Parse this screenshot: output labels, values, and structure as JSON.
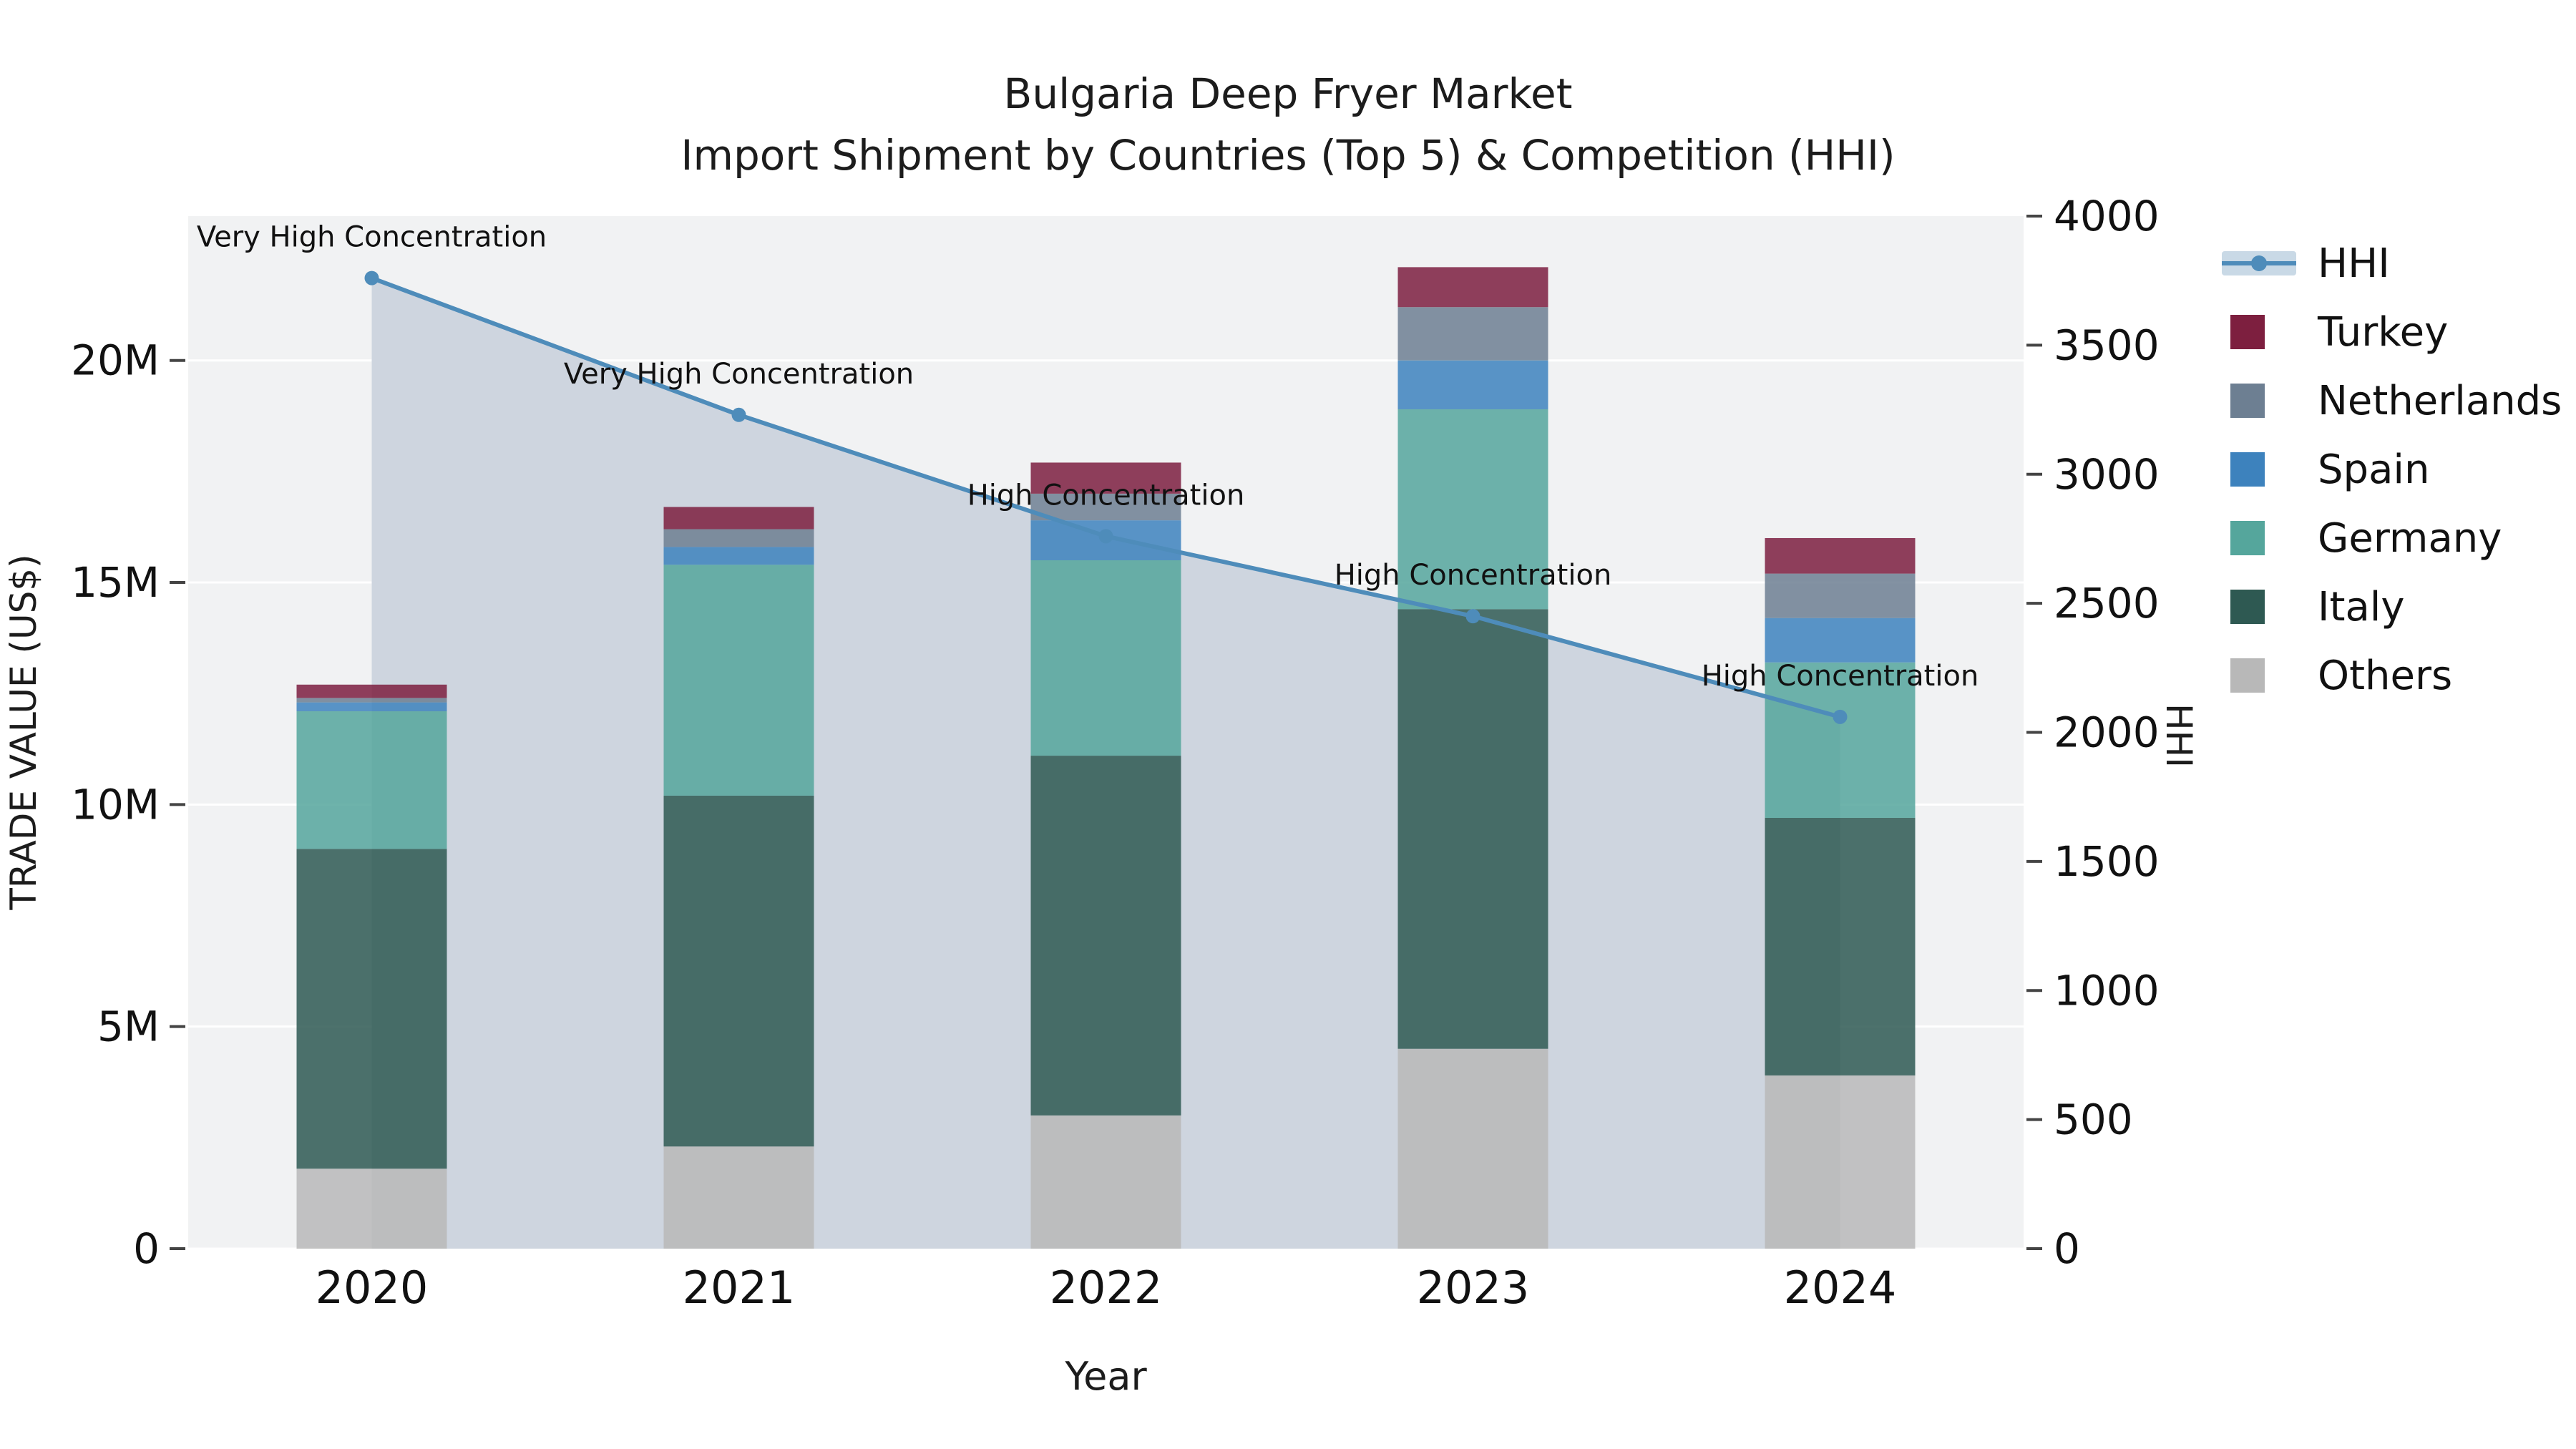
{
  "title": {
    "line1": "Bulgaria Deep Fryer Market",
    "line2": "Import Shipment by Countries (Top 5) & Competition (HHI)"
  },
  "axes": {
    "y_left_title": "TRADE VALUE (US$)",
    "x_title": "Year",
    "y_right_title": "HHI"
  },
  "legend": [
    {
      "label": "HHI",
      "type": "line",
      "color": "#4e8cba"
    },
    {
      "label": "Turkey",
      "type": "square",
      "color": "#7d1f3f"
    },
    {
      "label": "Netherlands",
      "type": "square",
      "color": "#6d7f92"
    },
    {
      "label": "Spain",
      "type": "square",
      "color": "#3d82bd"
    },
    {
      "label": "Germany",
      "type": "square",
      "color": "#55a69c"
    },
    {
      "label": "Italy",
      "type": "square",
      "color": "#2e5952"
    },
    {
      "label": "Others",
      "type": "square",
      "color": "#b8b8b8"
    }
  ],
  "chart_data": {
    "type": "bar",
    "subtype": "stacked-bars-with-line",
    "title": "Bulgaria Deep Fryer Market Import Shipment by Countries (Top 5) & Competition (HHI)",
    "xlabel": "Year",
    "ylabel_left": "TRADE VALUE (US$)",
    "ylabel_right": "HHI",
    "categories": [
      "2020",
      "2021",
      "2022",
      "2023",
      "2024"
    ],
    "bar_value_unit": "million US$",
    "series": [
      {
        "name": "Others",
        "color": "#b8b8b8",
        "values": [
          1.8,
          2.3,
          3.0,
          4.5,
          3.9
        ]
      },
      {
        "name": "Italy",
        "color": "#2e5952",
        "values": [
          7.2,
          7.9,
          8.1,
          9.9,
          5.8
        ]
      },
      {
        "name": "Germany",
        "color": "#55a69c",
        "values": [
          3.1,
          5.2,
          4.4,
          4.5,
          3.5
        ]
      },
      {
        "name": "Spain",
        "color": "#3d82bd",
        "values": [
          0.2,
          0.4,
          0.9,
          1.1,
          1.0
        ]
      },
      {
        "name": "Netherlands",
        "color": "#6d7f92",
        "values": [
          0.1,
          0.4,
          0.6,
          1.2,
          1.0
        ]
      },
      {
        "name": "Turkey",
        "color": "#7d1f3f",
        "values": [
          0.3,
          0.5,
          0.7,
          0.9,
          0.8
        ]
      }
    ],
    "hhi": {
      "name": "HHI",
      "color": "#4e8cba",
      "area_color": "#ccd4de",
      "values": [
        3760,
        3230,
        2760,
        2450,
        2060
      ],
      "annotations": [
        "Very High Concentration",
        "Very High Concentration",
        "High Concentration",
        "High Concentration",
        "High Concentration"
      ]
    },
    "y_left": {
      "ticks": [
        0,
        5,
        10,
        15,
        20
      ],
      "tick_labels": [
        "0",
        "5M",
        "10M",
        "15M",
        "20M"
      ],
      "max": 23.25
    },
    "y_right": {
      "ticks": [
        0,
        500,
        1000,
        1500,
        2000,
        2500,
        3000,
        3500,
        4000
      ],
      "tick_labels": [
        "0",
        "500",
        "1000",
        "1500",
        "2000",
        "2500",
        "3000",
        "3500",
        "4000"
      ],
      "max": 4000
    },
    "grid": "horizontal-white-on-light-gray",
    "legend_position": "right"
  }
}
